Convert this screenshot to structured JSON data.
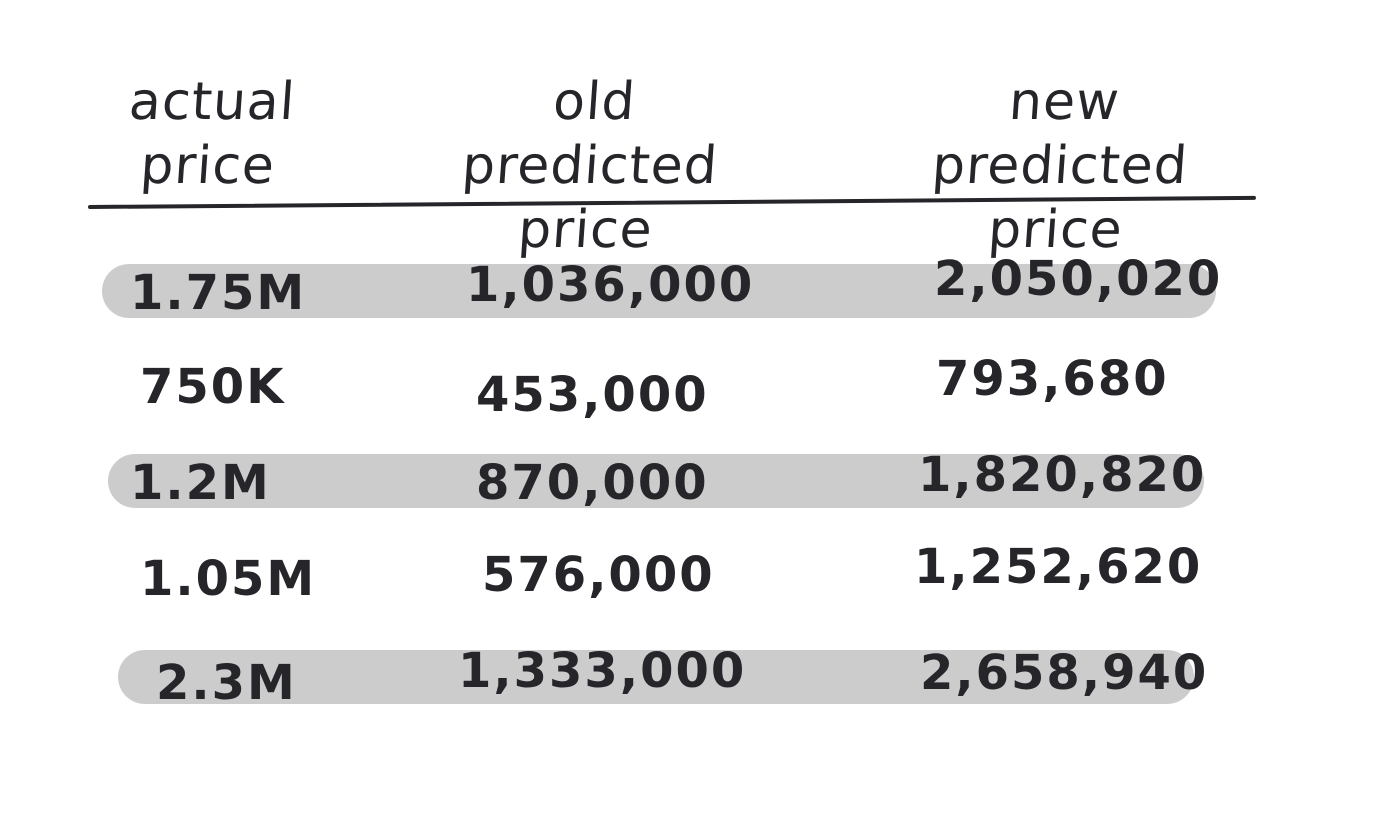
{
  "headers": [
    {
      "line1": "actual",
      "line2": "price"
    },
    {
      "line1": "old",
      "line2": "predicted price"
    },
    {
      "line1": "new",
      "line2": "predicted price"
    }
  ],
  "rows": [
    {
      "actual": "1.75M",
      "old": "1,036,000",
      "new": "2,050,020",
      "highlighted": true
    },
    {
      "actual": "750K",
      "old": "453,000",
      "new": "793,680",
      "highlighted": false
    },
    {
      "actual": "1.2M",
      "old": "870,000",
      "new": "1,820,820",
      "highlighted": true
    },
    {
      "actual": "1.05M",
      "old": "576,000",
      "new": "1,252,620",
      "highlighted": false
    },
    {
      "actual": "2.3M",
      "old": "1,333,000",
      "new": "2,658,940",
      "highlighted": true
    }
  ],
  "colors": {
    "ink": "#26252a",
    "highlight_band": "#cccccc",
    "background": "#ffffff"
  }
}
